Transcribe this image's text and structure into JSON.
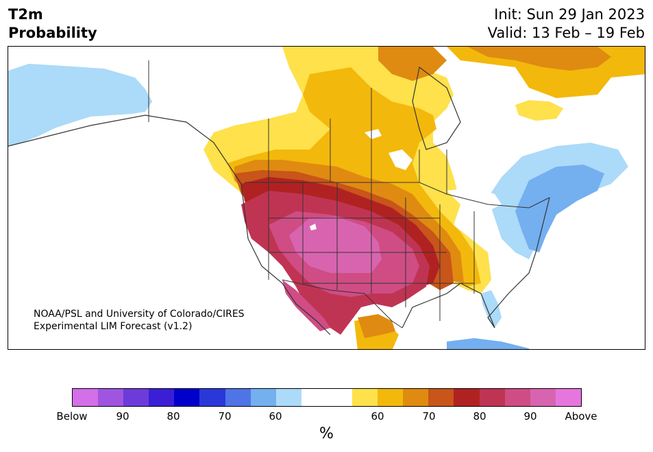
{
  "header": {
    "variable": "T2m",
    "subtitle": "Probability",
    "init_text": "Init: Sun 29 Jan 2023",
    "valid_text": "Valid: 13 Feb – 19 Feb"
  },
  "credit": {
    "line1": "NOAA/PSL and University of Colorado/CIRES",
    "line2": "Experimental LIM Forecast (v1.2)"
  },
  "colors": {
    "ocean": "#ffffff",
    "land_border": "#333333",
    "below": [
      "#d36fe8",
      "#9f55e0",
      "#6d3bd9",
      "#3a1fd6",
      "#0000cc",
      "#2a38d9",
      "#4f74e6",
      "#74aff0",
      "#acdaf9"
    ],
    "neutral": "#ffffff",
    "above": [
      "#fee14b",
      "#f3b80c",
      "#df8b11",
      "#c85519",
      "#b02222",
      "#c03453",
      "#cf4d84",
      "#d864b0",
      "#e676dd"
    ]
  },
  "colorbar": {
    "cells": [
      "#d36fe8",
      "#9f55e0",
      "#6d3bd9",
      "#3a1fd6",
      "#0000cc",
      "#2a38d9",
      "#4f74e6",
      "#74aff0",
      "#acdaf9",
      "#ffffff",
      "#ffffff",
      "#fee14b",
      "#f3b80c",
      "#df8b11",
      "#c85519",
      "#b02222",
      "#c03453",
      "#cf4d84",
      "#d864b0",
      "#e676dd"
    ],
    "ticks": [
      "Below",
      "90",
      "80",
      "70",
      "60",
      "60",
      "70",
      "80",
      "90",
      "Above"
    ],
    "unit": "%"
  }
}
